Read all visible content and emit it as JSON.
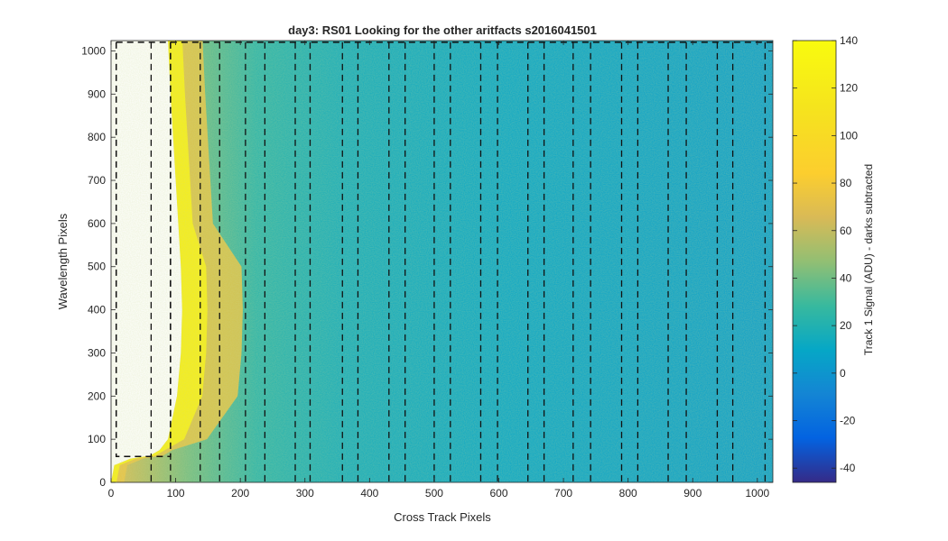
{
  "chart_data": {
    "type": "heatmap",
    "title": "day3: RS01  Looking for the other aritfacts  s2016041501",
    "xlabel": "Cross Track Pixels",
    "ylabel": "Wavelength Pixels",
    "colorbar_label": "Track 1 Signal (ADU) - darks subtracted",
    "xlim": [
      0,
      1024
    ],
    "ylim": [
      0,
      1024
    ],
    "clim": [
      -46,
      140
    ],
    "x_ticks": [
      0,
      100,
      200,
      300,
      400,
      500,
      600,
      700,
      800,
      900,
      1000
    ],
    "y_ticks": [
      0,
      100,
      200,
      300,
      400,
      500,
      600,
      700,
      800,
      900,
      1000
    ],
    "colorbar_ticks": [
      -40,
      -20,
      0,
      20,
      40,
      60,
      80,
      100,
      120,
      140
    ],
    "colormap": "parula",
    "background_value": 5,
    "bright_edge_value": 125,
    "edge_profile": [
      {
        "y": 0,
        "x": 0
      },
      {
        "y": 40,
        "x": 5
      },
      {
        "y": 55,
        "x": 30
      },
      {
        "y": 62,
        "x": 60
      },
      {
        "y": 75,
        "x": 75
      },
      {
        "y": 100,
        "x": 88
      },
      {
        "y": 200,
        "x": 102
      },
      {
        "y": 300,
        "x": 108
      },
      {
        "y": 400,
        "x": 110
      },
      {
        "y": 500,
        "x": 108
      },
      {
        "y": 600,
        "x": 104
      },
      {
        "y": 700,
        "x": 100
      },
      {
        "y": 800,
        "x": 96
      },
      {
        "y": 900,
        "x": 92
      },
      {
        "y": 1024,
        "x": 88
      }
    ],
    "dashed_box": {
      "x": [
        8,
        92
      ],
      "y": [
        60,
        1020
      ]
    },
    "dashed_vlines": [
      62,
      92,
      138,
      168,
      208,
      238,
      285,
      308,
      358,
      382,
      430,
      455,
      500,
      525,
      572,
      598,
      645,
      670,
      715,
      742,
      790,
      815,
      862,
      890,
      938,
      962,
      1012
    ],
    "top_dashed_line_y": 1020
  }
}
